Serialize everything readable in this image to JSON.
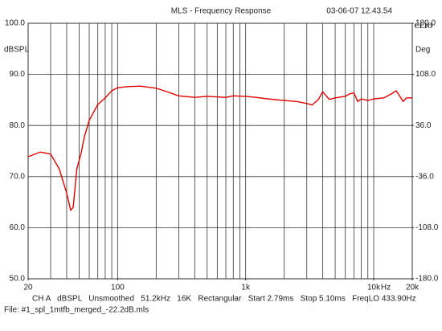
{
  "chart_data": {
    "type": "line",
    "title": "MLS - Frequency Response",
    "timestamp": "03-06-07 12.43.54",
    "brand": "CLIO",
    "ylabel": "dBSPL",
    "y2label": "Deg",
    "x_unit": "Hz",
    "info": "CH A   dBSPL   Unsmoothed   51.2kHz   16K   Rectangular   Start 2.79ms   Stop 5.10ms   FreqLO 433.90Hz",
    "file": "File: #1_spl_1mtfb_merged_-22.2dB.mls",
    "log_x": true,
    "grid": true,
    "xlim": [
      20,
      20000
    ],
    "xticks": [
      20,
      100,
      {
        "value": 1000,
        "label": "1k"
      },
      {
        "value": 10000,
        "label": "10k"
      },
      {
        "value": 20000,
        "label": "20k"
      }
    ],
    "xgrid": [
      20,
      30,
      40,
      50,
      60,
      70,
      80,
      90,
      100,
      200,
      300,
      400,
      500,
      600,
      700,
      800,
      900,
      1000,
      2000,
      3000,
      4000,
      5000,
      6000,
      7000,
      8000,
      9000,
      10000,
      20000
    ],
    "ylim": [
      50,
      100
    ],
    "yticks": [
      {
        "value": 50,
        "label": "50.0"
      },
      {
        "value": 60,
        "label": "60.0"
      },
      {
        "value": 70,
        "label": "70.0"
      },
      {
        "value": 80,
        "label": "80.0"
      },
      {
        "value": 90,
        "label": "90.0"
      },
      {
        "value": 100,
        "label": "100.0"
      }
    ],
    "y2lim": [
      -180,
      180
    ],
    "y2ticks": [
      {
        "value": -180,
        "label": "-180.0"
      },
      {
        "value": -108,
        "label": "-108.0"
      },
      {
        "value": -36,
        "label": "-36.0"
      },
      {
        "value": 36,
        "label": "36.0"
      },
      {
        "value": 108,
        "label": "108.0"
      },
      {
        "value": 180,
        "label": "180.0"
      }
    ],
    "x": [
      20,
      25,
      30,
      35,
      40,
      43,
      45,
      48,
      52,
      55,
      60,
      70,
      80,
      90,
      100,
      120,
      150,
      200,
      250,
      300,
      400,
      500,
      700,
      800,
      1000,
      1200,
      1500,
      2000,
      2500,
      3000,
      3300,
      3700,
      4000,
      4500,
      5000,
      6000,
      6500,
      7000,
      7500,
      8000,
      9000,
      10000,
      12000,
      14000,
      15000,
      16000,
      17000,
      18000,
      20000
    ],
    "series": [
      {
        "name": "CH A",
        "color": "#e00000",
        "values": [
          73.9,
          74.8,
          74.4,
          71.5,
          66.8,
          63.4,
          64,
          71.5,
          74.7,
          77.8,
          81,
          84.1,
          85.4,
          86.8,
          87.4,
          87.6,
          87.7,
          87.3,
          86.5,
          85.8,
          85.5,
          85.7,
          85.5,
          85.8,
          85.7,
          85.5,
          85.2,
          84.9,
          84.7,
          84.3,
          84,
          85.1,
          86.6,
          85.1,
          85.4,
          85.7,
          86.2,
          86.4,
          84.7,
          85.2,
          84.9,
          85.2,
          85.4,
          86.3,
          86.8,
          85.7,
          84.7,
          85.4,
          85.4
        ]
      }
    ]
  }
}
